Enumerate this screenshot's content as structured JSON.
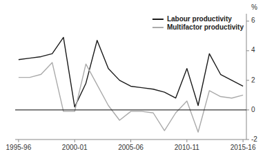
{
  "chart_data": {
    "type": "line",
    "y_label": "%",
    "categories": [
      "1995-96",
      null,
      null,
      null,
      null,
      "2000-01",
      null,
      null,
      null,
      null,
      "2005-06",
      null,
      null,
      null,
      null,
      "2010-11",
      null,
      null,
      null,
      null,
      "2015-16"
    ],
    "series": [
      {
        "name": "Labour productivity",
        "color": "#1a1a1a",
        "values": [
          3.4,
          3.5,
          3.6,
          3.8,
          4.9,
          0.2,
          1.8,
          4.7,
          2.8,
          2.0,
          1.6,
          1.5,
          1.4,
          1.2,
          0.8,
          2.8,
          0.3,
          3.8,
          2.4,
          2.0,
          1.6
        ]
      },
      {
        "name": "Multifactor productivity",
        "color": "#aaaaaa",
        "values": [
          2.2,
          2.2,
          2.4,
          3.2,
          -0.1,
          -0.1,
          3.1,
          1.7,
          0.3,
          -0.7,
          -0.1,
          -0.1,
          -0.2,
          -1.4,
          -0.2,
          0.6,
          -1.5,
          1.3,
          0.9,
          0.8,
          1.0
        ]
      }
    ],
    "reference_lines": [
      {
        "value": 0,
        "color": "#000000"
      }
    ],
    "ylim": [
      -2,
      6.5
    ],
    "yticks": [
      -2,
      0,
      2,
      4,
      6
    ],
    "grid": false,
    "legend": "upper right"
  }
}
